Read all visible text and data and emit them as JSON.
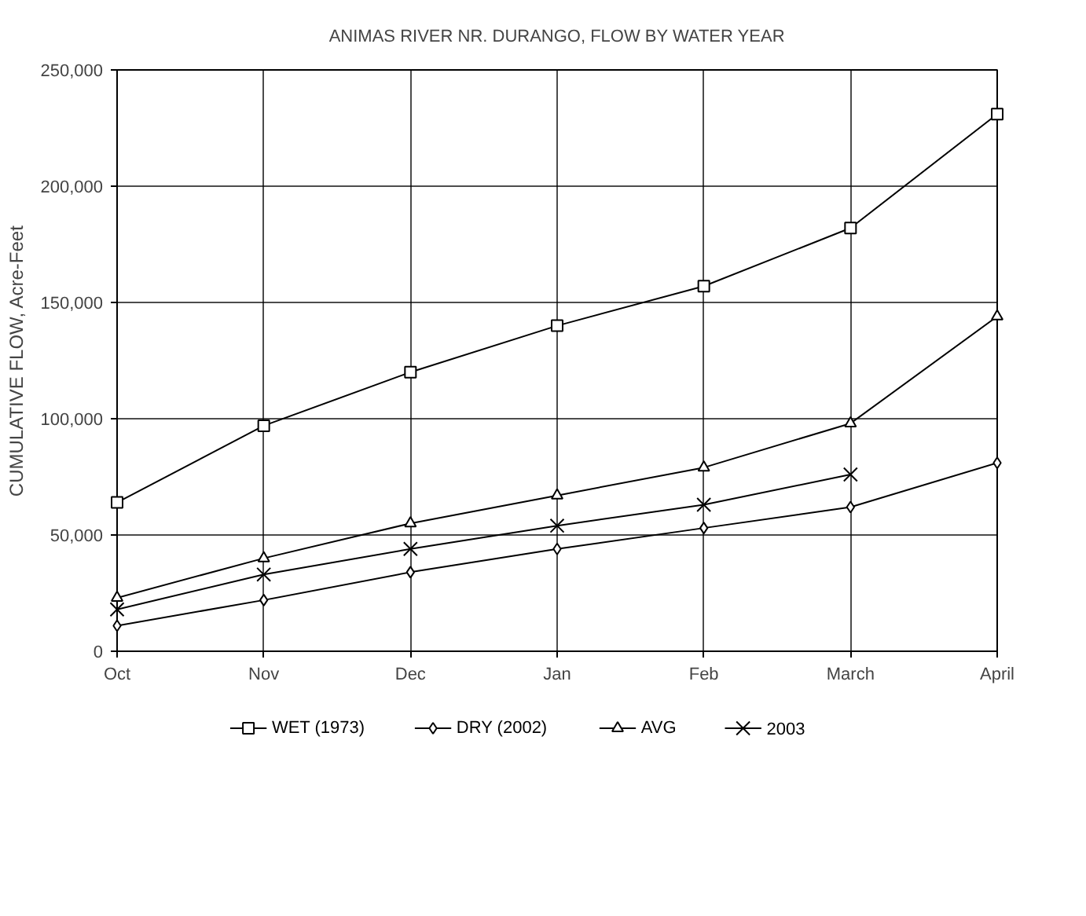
{
  "chart_data": {
    "type": "line",
    "title": "ANIMAS RIVER NR. DURANGO, FLOW BY WATER YEAR",
    "ylabel": "CUMULATIVE FLOW, Acre-Feet",
    "categories": [
      "Oct",
      "Nov",
      "Dec",
      "Jan",
      "Feb",
      "March",
      "April"
    ],
    "series": [
      {
        "name": "WET (1973)",
        "color": "#000000",
        "marker": "square",
        "values": [
          64000,
          97000,
          120000,
          140000,
          157000,
          182000,
          231000
        ]
      },
      {
        "name": "DRY (2002)",
        "color": "#000000",
        "marker": "diamond",
        "values": [
          11000,
          22000,
          34000,
          44000,
          53000,
          62000,
          81000
        ]
      },
      {
        "name": "AVG",
        "color": "#000000",
        "marker": "triangle",
        "values": [
          23000,
          40000,
          55000,
          67000,
          79000,
          98000,
          144000
        ]
      },
      {
        "name": "2003",
        "color": "#000000",
        "marker": "cross",
        "values": [
          18000,
          33000,
          44000,
          54000,
          63000,
          76000,
          null
        ]
      }
    ],
    "ylim": [
      0,
      250000
    ],
    "yticks": [
      {
        "value": 0,
        "label": "0"
      },
      {
        "value": 50000,
        "label": "50,000"
      },
      {
        "value": 100000,
        "label": "100,000"
      },
      {
        "value": 150000,
        "label": "150,000"
      },
      {
        "value": 200000,
        "label": "200,000"
      },
      {
        "value": 250000,
        "label": "250,000"
      }
    ],
    "grid": true,
    "legend": "bottom",
    "line_style": "solid"
  }
}
